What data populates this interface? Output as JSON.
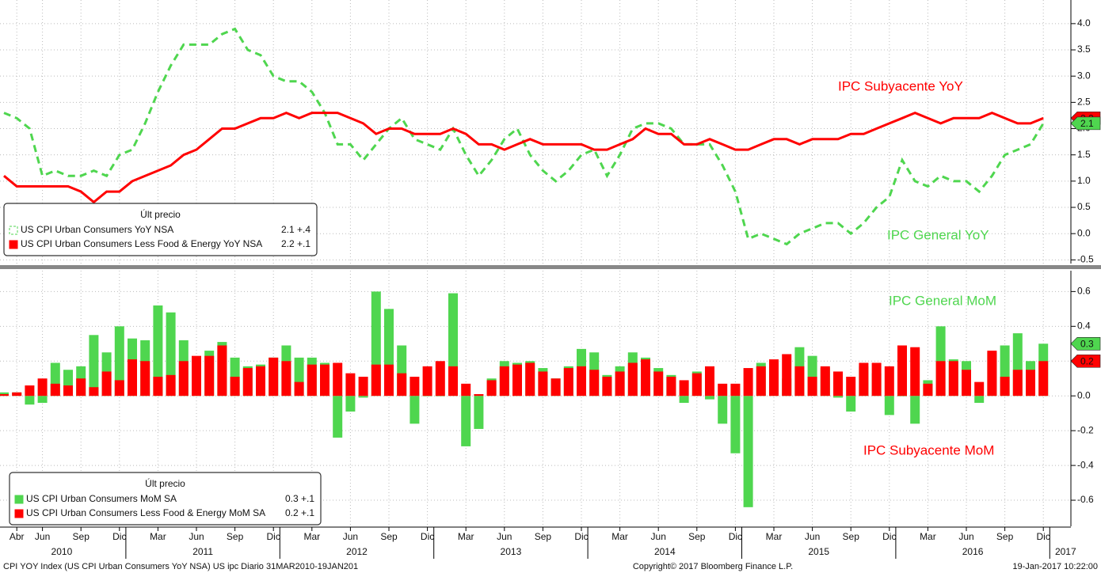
{
  "chart_data": [
    {
      "type": "line",
      "series": [
        {
          "name": "US CPI Urban Consumers YoY NSA",
          "color": "#4fd64f",
          "dash": true,
          "values": [
            2.3,
            2.2,
            2.0,
            1.1,
            1.2,
            1.1,
            1.1,
            1.2,
            1.1,
            1.5,
            1.6,
            2.1,
            2.7,
            3.2,
            3.6,
            3.6,
            3.6,
            3.8,
            3.9,
            3.5,
            3.4,
            3.0,
            2.9,
            2.9,
            2.7,
            2.3,
            1.7,
            1.7,
            1.4,
            1.7,
            2.0,
            2.2,
            1.8,
            1.7,
            1.6,
            2.0,
            1.5,
            1.1,
            1.4,
            1.8,
            2.0,
            1.5,
            1.2,
            1.0,
            1.2,
            1.5,
            1.6,
            1.1,
            1.5,
            2.0,
            2.1,
            2.1,
            2.0,
            1.7,
            1.7,
            1.7,
            1.3,
            0.8,
            -0.1,
            0.0,
            -0.1,
            -0.2,
            0.0,
            0.1,
            0.2,
            0.2,
            0.0,
            0.2,
            0.5,
            0.7,
            1.4,
            1.0,
            0.9,
            1.1,
            1.0,
            1.0,
            0.8,
            1.1,
            1.5,
            1.6,
            1.7,
            2.1
          ]
        },
        {
          "name": "US CPI Urban Consumers Less Food & Energy YoY NSA",
          "color": "#ff0000",
          "values": [
            1.1,
            0.9,
            0.9,
            0.9,
            0.9,
            0.9,
            0.8,
            0.6,
            0.8,
            0.8,
            1.0,
            1.1,
            1.2,
            1.3,
            1.5,
            1.6,
            1.8,
            2.0,
            2.0,
            2.1,
            2.2,
            2.2,
            2.3,
            2.2,
            2.3,
            2.3,
            2.3,
            2.2,
            2.1,
            1.9,
            2.0,
            2.0,
            1.9,
            1.9,
            1.9,
            2.0,
            1.9,
            1.7,
            1.7,
            1.6,
            1.7,
            1.8,
            1.7,
            1.7,
            1.7,
            1.7,
            1.6,
            1.6,
            1.7,
            1.8,
            2.0,
            1.9,
            1.9,
            1.7,
            1.7,
            1.8,
            1.7,
            1.6,
            1.6,
            1.7,
            1.8,
            1.8,
            1.7,
            1.8,
            1.8,
            1.8,
            1.9,
            1.9,
            2.0,
            2.1,
            2.2,
            2.3,
            2.2,
            2.1,
            2.2,
            2.2,
            2.2,
            2.3,
            2.2,
            2.1,
            2.1,
            2.2
          ]
        }
      ],
      "legend_title": "Últ precio",
      "legend_values": [
        "2.1 +.4",
        "2.2 +.1"
      ],
      "annotations": [
        {
          "text": "IPC Subyacente YoY",
          "color": "#ff0000"
        },
        {
          "text": "IPC General YoY",
          "color": "#4fd64f"
        }
      ],
      "ylim": [
        -0.57,
        4.45
      ],
      "yticks": [
        {
          "value": 4,
          "label": "4.0"
        },
        3.5,
        {
          "value": 3,
          "label": "3.0"
        },
        2.5,
        {
          "value": 2,
          "label": "2.0"
        },
        1.5,
        {
          "value": 1,
          "label": "1.0"
        },
        0.5,
        {
          "value": 0,
          "label": "0.0"
        },
        -0.5
      ],
      "grid": true
    },
    {
      "type": "bar",
      "series": [
        {
          "name": "US CPI Urban Consumers MoM SA",
          "color": "#4fd64f",
          "values": [
            0.02,
            0.02,
            -0.05,
            -0.04,
            0.19,
            0.15,
            0.17,
            0.35,
            0.25,
            0.4,
            0.33,
            0.32,
            0.52,
            0.48,
            0.32,
            0.22,
            0.26,
            0.31,
            0.22,
            0.17,
            0.18,
            0.22,
            0.29,
            0.22,
            0.22,
            0.19,
            -0.24,
            -0.09,
            -0.01,
            0.6,
            0.5,
            0.29,
            -0.16,
            0.0,
            0.0,
            0.59,
            -0.29,
            -0.19,
            0.1,
            0.2,
            0.19,
            0.2,
            0.16,
            0.1,
            0.17,
            0.27,
            0.25,
            0.12,
            0.17,
            0.25,
            0.22,
            0.16,
            0.12,
            -0.04,
            0.14,
            -0.02,
            -0.16,
            -0.33,
            -0.64,
            0.19,
            0.2,
            0.1,
            0.28,
            0.23,
            0.16,
            -0.01,
            -0.09,
            0.17,
            0.13,
            -0.11,
            0.0,
            -0.16,
            0.09,
            0.4,
            0.21,
            0.2,
            -0.04,
            0.25,
            0.29,
            0.36,
            0.2,
            0.3
          ]
        },
        {
          "name": "US CPI Urban Consumers Less Food & Energy MoM SA",
          "color": "#ff0000",
          "values": [
            0.01,
            0.02,
            0.06,
            0.1,
            0.07,
            0.06,
            0.1,
            0.05,
            0.14,
            0.09,
            0.21,
            0.2,
            0.11,
            0.12,
            0.2,
            0.23,
            0.23,
            0.29,
            0.11,
            0.16,
            0.17,
            0.22,
            0.2,
            0.08,
            0.18,
            0.18,
            0.19,
            0.13,
            0.11,
            0.18,
            0.18,
            0.13,
            0.11,
            0.17,
            0.2,
            0.17,
            0.07,
            0.01,
            0.09,
            0.17,
            0.18,
            0.19,
            0.14,
            0.1,
            0.16,
            0.17,
            0.15,
            0.11,
            0.14,
            0.19,
            0.21,
            0.14,
            0.11,
            0.09,
            0.13,
            0.17,
            0.07,
            0.07,
            0.16,
            0.17,
            0.21,
            0.24,
            0.17,
            0.11,
            0.17,
            0.14,
            0.11,
            0.19,
            0.19,
            0.17,
            0.29,
            0.28,
            0.07,
            0.2,
            0.2,
            0.15,
            0.08,
            0.26,
            0.11,
            0.15,
            0.15,
            0.2
          ]
        }
      ],
      "legend_title": "Últ precio",
      "legend_values": [
        "0.3 +.1",
        "0.2 +.1"
      ],
      "annotations": [
        {
          "text": "IPC General MoM",
          "color": "#4fd64f"
        },
        {
          "text": "IPC Subyacente MoM",
          "color": "#ff0000"
        }
      ],
      "ylim": [
        -0.75,
        0.72
      ],
      "yticks": [
        0.6,
        0.4,
        0.2,
        {
          "value": 0,
          "label": "0.0"
        },
        -0.2,
        -0.4,
        -0.6
      ],
      "grid": true
    }
  ],
  "x_axis": {
    "months": [
      null,
      "Abr",
      null,
      "Jun",
      null,
      null,
      "Sep",
      null,
      null,
      "Dic",
      null,
      null,
      "Mar",
      null,
      null,
      "Jun",
      null,
      null,
      "Sep",
      null,
      null,
      "Dic",
      null,
      null,
      "Mar",
      null,
      null,
      "Jun",
      null,
      null,
      "Sep",
      null,
      null,
      "Dic",
      null,
      null,
      "Mar",
      null,
      null,
      "Jun",
      null,
      null,
      "Sep",
      null,
      null,
      "Dic",
      null,
      null,
      "Mar",
      null,
      null,
      "Jun",
      null,
      null,
      "Sep",
      null,
      null,
      "Dic",
      null,
      null,
      "Mar",
      null,
      null,
      "Jun",
      null,
      null,
      "Sep",
      null,
      null,
      "Dic",
      null,
      null,
      "Mar",
      null,
      null,
      "Jun",
      null,
      null,
      "Sep",
      null,
      null,
      "Dic"
    ],
    "years": [
      "2010",
      "2011",
      "2012",
      "2013",
      "2014",
      "2015",
      "2016",
      "2017"
    ]
  },
  "footer": {
    "left": "CPI YOY Index (US CPI Urban Consumers YoY NSA) US ipc  Diario 31MAR2010-19JAN201",
    "center": "Copyright© 2017 Bloomberg Finance L.P.",
    "right": "19-Jan-2017 10:22:00"
  }
}
